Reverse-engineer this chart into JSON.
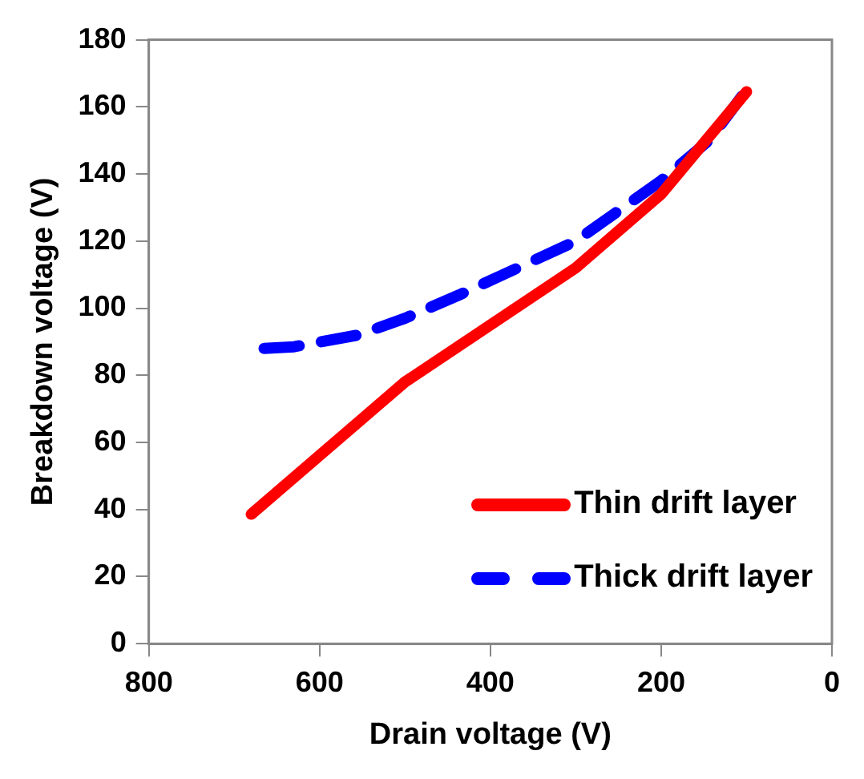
{
  "chart_data": {
    "type": "line",
    "xlabel": "Drain voltage (V)",
    "ylabel": "Breakdown voltage (V)",
    "xlim": [
      800,
      0
    ],
    "xticks": [
      800,
      600,
      400,
      200,
      0
    ],
    "ylim": [
      0,
      180
    ],
    "yticks": [
      0,
      20,
      40,
      60,
      80,
      100,
      120,
      140,
      160,
      180
    ],
    "grid": false,
    "legend": "bottom right",
    "marker": "none",
    "series": [
      {
        "name": "Thin drift layer",
        "color": "#ff0000",
        "line_style": "solid",
        "x": [
          680,
          500,
          300,
          200,
          100
        ],
        "values": [
          38.6,
          78,
          112,
          134,
          164.5
        ]
      },
      {
        "name": "Thick drift layer",
        "color": "#0000ff",
        "line_style": "dashed",
        "x": [
          665,
          630,
          555,
          500,
          436,
          300,
          200,
          144,
          100
        ],
        "values": [
          88,
          88.5,
          92,
          97,
          104,
          120,
          138,
          150,
          165
        ]
      }
    ]
  }
}
